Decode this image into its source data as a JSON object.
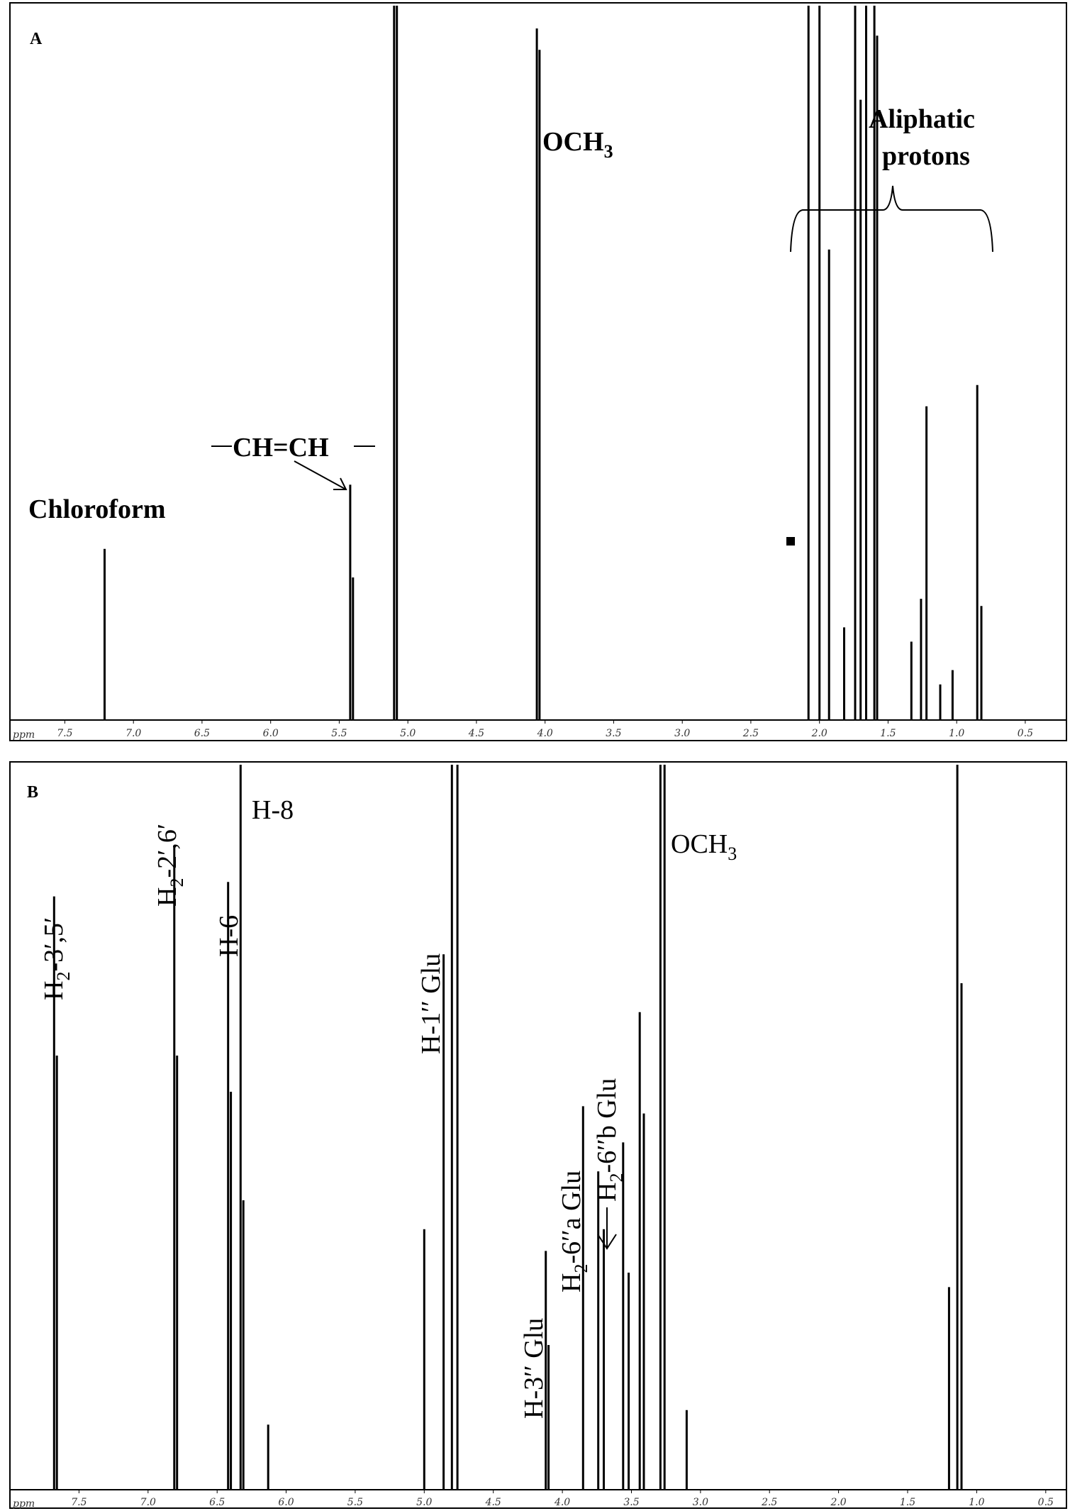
{
  "figure": {
    "panel_a_letter": "A",
    "panel_b_letter": "B"
  },
  "chart_data": [
    {
      "type": "line",
      "panel": "A",
      "xlabel": "ppm",
      "x_reversed": true,
      "xlim": [
        7.9,
        0.2
      ],
      "x_ticks": [
        "7.5",
        "7.0",
        "6.5",
        "6.0",
        "5.5",
        "5.0",
        "4.5",
        "4.0",
        "3.5",
        "3.0",
        "2.5",
        "2.0",
        "1.5",
        "1.0",
        "0.5"
      ],
      "x_tick_values": [
        7.5,
        7.0,
        6.5,
        6.0,
        5.5,
        5.0,
        4.5,
        4.0,
        3.5,
        3.0,
        2.5,
        2.0,
        1.5,
        1.0,
        0.5
      ],
      "peaks": [
        {
          "ppm": 7.21,
          "height": 0.24
        },
        {
          "ppm": 5.42,
          "height": 0.33
        },
        {
          "ppm": 5.4,
          "height": 0.2
        },
        {
          "ppm": 5.1,
          "height": 1.05
        },
        {
          "ppm": 5.08,
          "height": 1.05
        },
        {
          "ppm": 4.06,
          "height": 0.97
        },
        {
          "ppm": 4.04,
          "height": 0.94
        },
        {
          "ppm": 2.08,
          "height": 1.05
        },
        {
          "ppm": 2.0,
          "height": 1.05
        },
        {
          "ppm": 1.93,
          "height": 0.66
        },
        {
          "ppm": 1.82,
          "height": 0.13
        },
        {
          "ppm": 1.74,
          "height": 1.05
        },
        {
          "ppm": 1.7,
          "height": 0.87
        },
        {
          "ppm": 1.66,
          "height": 1.05
        },
        {
          "ppm": 1.6,
          "height": 1.05
        },
        {
          "ppm": 1.58,
          "height": 0.96
        },
        {
          "ppm": 1.33,
          "height": 0.11
        },
        {
          "ppm": 1.26,
          "height": 0.17
        },
        {
          "ppm": 1.22,
          "height": 0.44
        },
        {
          "ppm": 1.12,
          "height": 0.05
        },
        {
          "ppm": 1.03,
          "height": 0.07
        },
        {
          "ppm": 0.85,
          "height": 0.47
        },
        {
          "ppm": 0.82,
          "height": 0.16
        }
      ],
      "annotations": {
        "chloroform": "Chloroform",
        "alkene": "CH=CH",
        "methoxy": "OCH",
        "methoxy_sub": "3",
        "aliphatic_line1": "Aliphatic",
        "aliphatic_line2": "protons"
      }
    },
    {
      "type": "line",
      "panel": "B",
      "xlabel": "ppm",
      "x_reversed": true,
      "xlim": [
        8.0,
        0.35
      ],
      "x_ticks": [
        "7.5",
        "7.0",
        "6.5",
        "6.0",
        "5.5",
        "5.0",
        "4.5",
        "4.0",
        "3.5",
        "3.0",
        "2.5",
        "2.0",
        "1.5",
        "1.0",
        "0.5"
      ],
      "x_tick_values": [
        7.5,
        7.0,
        6.5,
        6.0,
        5.5,
        5.0,
        4.5,
        4.0,
        3.5,
        3.0,
        2.5,
        2.0,
        1.5,
        1.0,
        0.5
      ],
      "peaks": [
        {
          "ppm": 7.68,
          "height": 0.82
        },
        {
          "ppm": 7.66,
          "height": 0.6
        },
        {
          "ppm": 6.81,
          "height": 0.89
        },
        {
          "ppm": 6.79,
          "height": 0.6
        },
        {
          "ppm": 6.42,
          "height": 0.84
        },
        {
          "ppm": 6.4,
          "height": 0.55
        },
        {
          "ppm": 6.33,
          "height": 1.05
        },
        {
          "ppm": 6.31,
          "height": 0.4
        },
        {
          "ppm": 6.13,
          "height": 0.09
        },
        {
          "ppm": 5.0,
          "height": 0.36
        },
        {
          "ppm": 4.86,
          "height": 0.74
        },
        {
          "ppm": 4.8,
          "height": 1.05
        },
        {
          "ppm": 4.76,
          "height": 1.05
        },
        {
          "ppm": 4.12,
          "height": 0.33
        },
        {
          "ppm": 4.1,
          "height": 0.2
        },
        {
          "ppm": 3.85,
          "height": 0.53
        },
        {
          "ppm": 3.74,
          "height": 0.44
        },
        {
          "ppm": 3.7,
          "height": 0.36
        },
        {
          "ppm": 3.56,
          "height": 0.48
        },
        {
          "ppm": 3.52,
          "height": 0.3
        },
        {
          "ppm": 3.44,
          "height": 0.66
        },
        {
          "ppm": 3.41,
          "height": 0.52
        },
        {
          "ppm": 3.29,
          "height": 1.05
        },
        {
          "ppm": 3.26,
          "height": 1.05
        },
        {
          "ppm": 3.1,
          "height": 0.11
        },
        {
          "ppm": 1.2,
          "height": 0.28
        },
        {
          "ppm": 1.14,
          "height": 1.05
        },
        {
          "ppm": 1.11,
          "height": 0.7
        }
      ],
      "annotations": {
        "h35": "H",
        "h35_sub": "2",
        "h35_tail": "-3′,5′",
        "h26": "H",
        "h26_sub": "2",
        "h26_tail": "-2′,6′",
        "h6": "H-6",
        "h8": "H-8",
        "h1glu": "H-1′′ Glu",
        "h3glu": "H-3′′ Glu",
        "h6a": "H",
        "h6a_sub": "2",
        "h6a_tail": "-6′′a Glu",
        "h6b": "H",
        "h6b_sub": "2",
        "h6b_tail": "-6′′b Glu",
        "methoxy": "OCH",
        "methoxy_sub": "3"
      }
    }
  ]
}
